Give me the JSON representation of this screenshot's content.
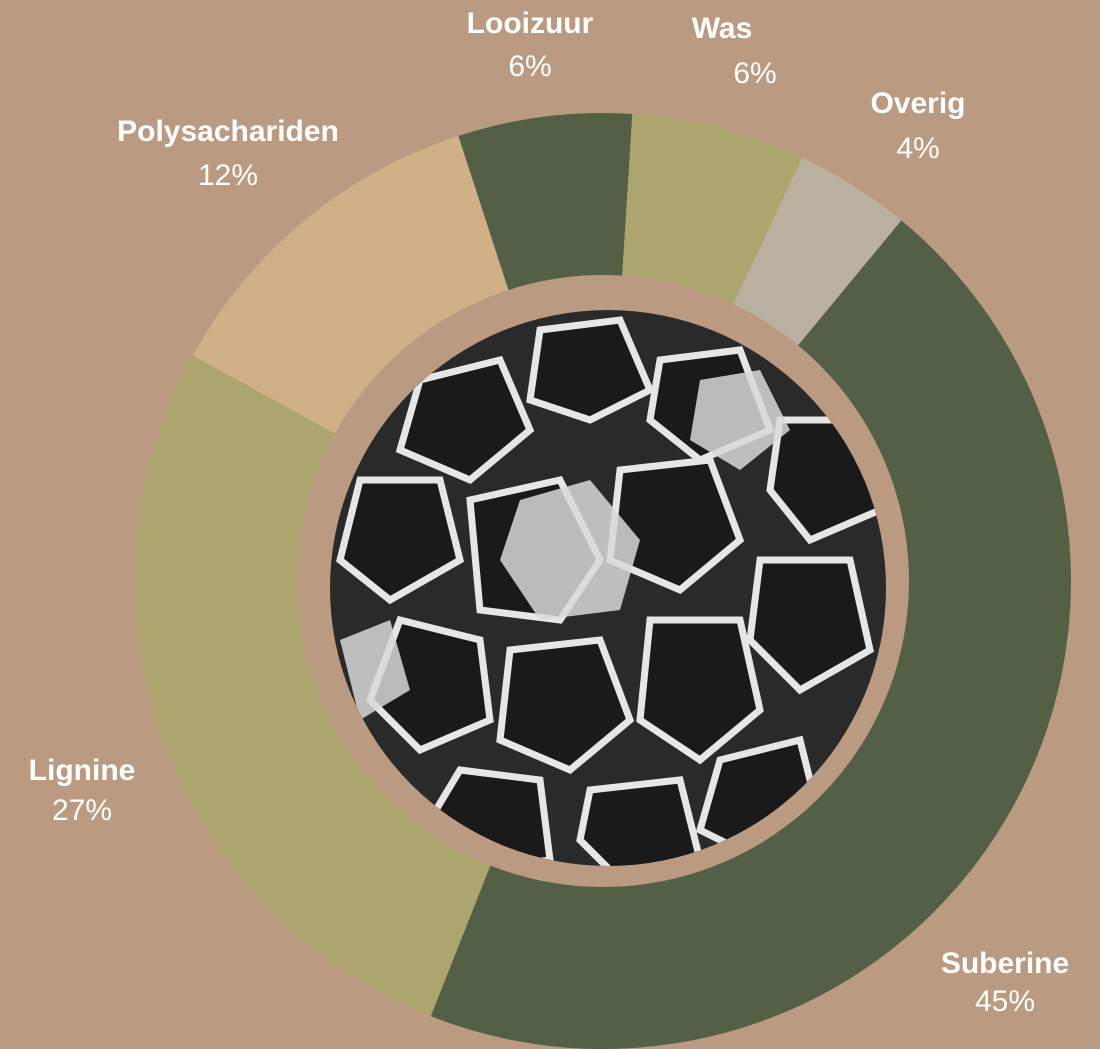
{
  "chart_data": {
    "type": "donut",
    "categories": [
      "Suberine",
      "Lignine",
      "Polysachariden",
      "Looizuur",
      "Was",
      "Overig"
    ],
    "values": [
      45,
      27,
      12,
      6,
      6,
      4
    ],
    "value_labels": [
      "45%",
      "27%",
      "12%",
      "6%",
      "6%",
      "4%"
    ],
    "colors": [
      "#536046",
      "#ada56e",
      "#cfb087",
      "#536046",
      "#ada56e",
      "#bab0a0"
    ]
  }
}
